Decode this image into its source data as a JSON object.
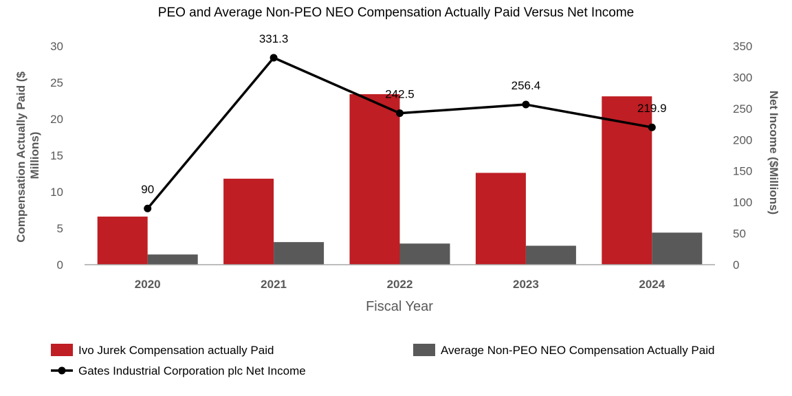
{
  "chart_data": {
    "type": "bar",
    "title": "PEO and Average Non-PEO NEO Compensation Actually Paid Versus Net Income",
    "xlabel": "Fiscal Year",
    "ylabel_left_line1": "Compensation Actually Paid ($",
    "ylabel_left_line2": "Millions)",
    "ylabel_right": "Net Income ($Millions)",
    "categories": [
      "2020",
      "2021",
      "2022",
      "2023",
      "2024"
    ],
    "ylim_left": [
      0,
      30
    ],
    "yticks_left": [
      0,
      5,
      10,
      15,
      20,
      25,
      30
    ],
    "ylim_right": [
      0,
      350
    ],
    "yticks_right": [
      0,
      50,
      100,
      150,
      200,
      250,
      300,
      350
    ],
    "series": [
      {
        "name": "Ivo Jurek Compensation actually Paid",
        "type": "bar",
        "axis": "left",
        "color": "#be1e24",
        "values": [
          6.6,
          11.8,
          23.4,
          12.6,
          23.1
        ]
      },
      {
        "name": "Average Non-PEO NEO Compensation Actually Paid",
        "type": "bar",
        "axis": "left",
        "color": "#595959",
        "values": [
          1.4,
          3.1,
          2.9,
          2.6,
          4.4
        ]
      },
      {
        "name": "Gates Industrial Corporation plc Net Income",
        "type": "line",
        "axis": "right",
        "color": "#000000",
        "values": [
          90,
          331.3,
          242.5,
          256.4,
          219.9
        ],
        "labels": [
          "90",
          "331.3",
          "242.5",
          "256.4",
          "219.9"
        ]
      }
    ],
    "legend_position": "bottom",
    "grid": false
  }
}
